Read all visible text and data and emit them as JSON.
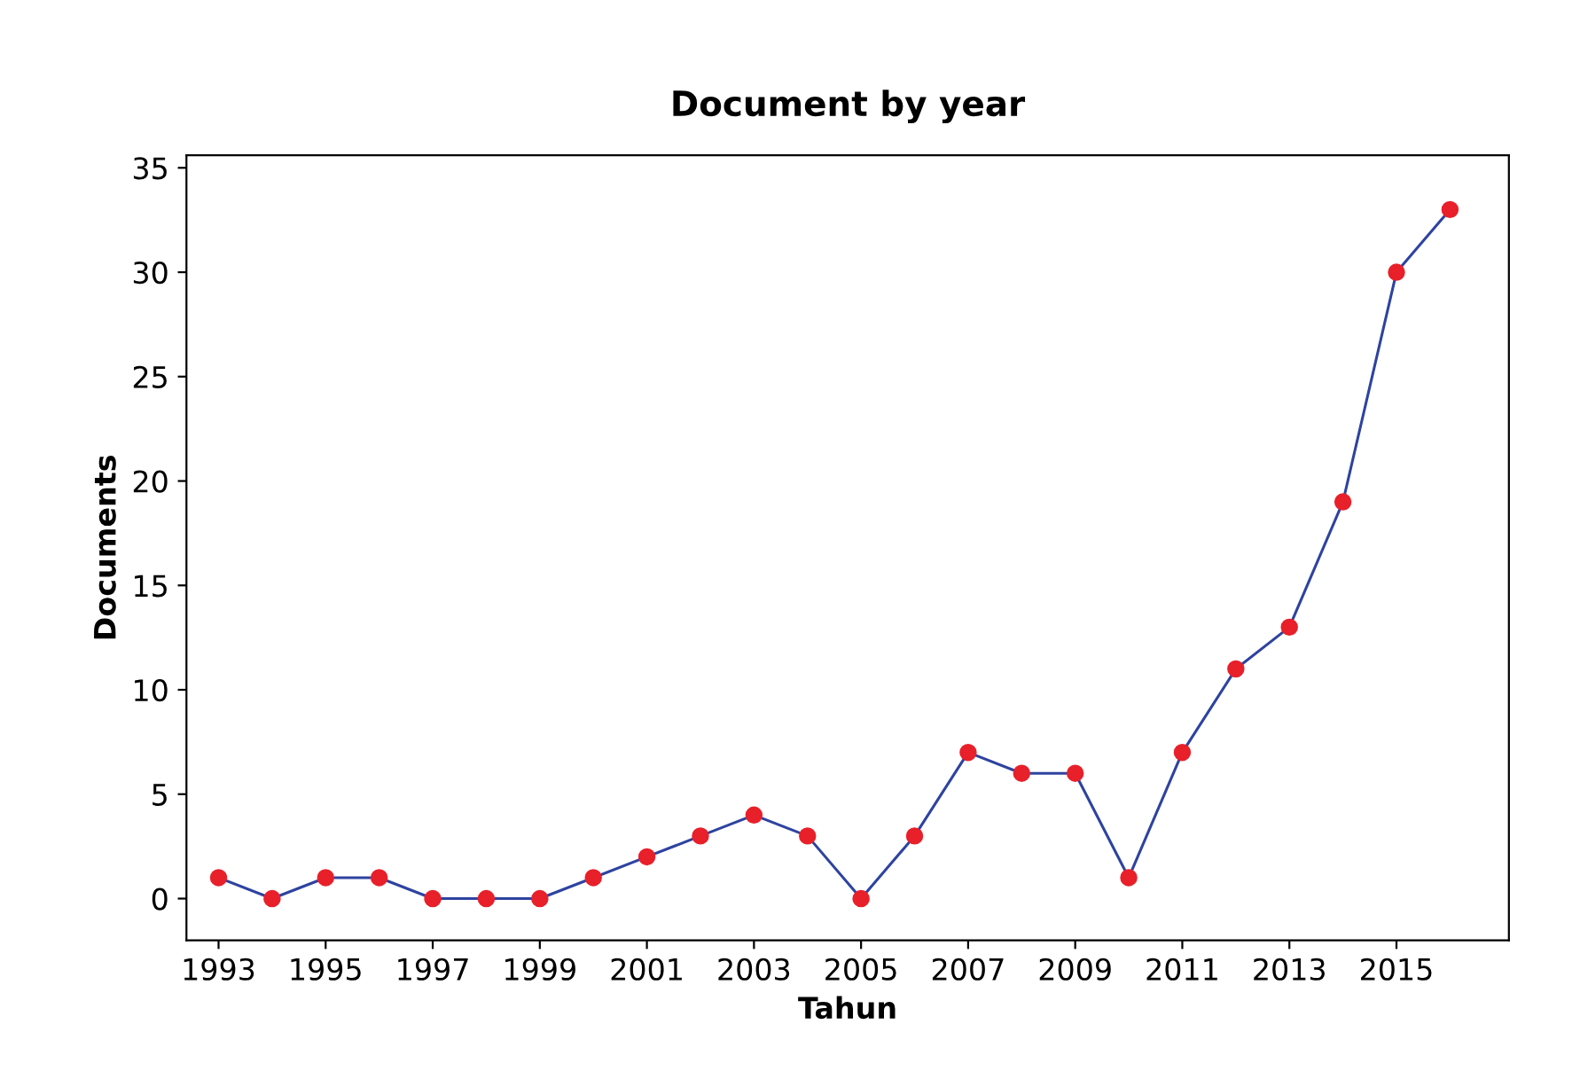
{
  "chart_data": {
    "type": "line",
    "title": "Document by year",
    "xlabel": "Tahun",
    "ylabel": "Documents",
    "x": [
      1993,
      1994,
      1995,
      1996,
      1997,
      1998,
      1999,
      2000,
      2001,
      2002,
      2003,
      2004,
      2005,
      2006,
      2007,
      2008,
      2009,
      2010,
      2011,
      2012,
      2013,
      2014,
      2015,
      2016
    ],
    "series": [
      {
        "color": "#2e43a0",
        "colors": [
          "#e8202a",
          "#e8202a",
          "#e8202a",
          "#e8202a",
          "#e8202a",
          "#e8202a",
          "#e8202a",
          "#e8202a",
          "#e8202a",
          "#e8202a",
          "#e8202a",
          "#e8202a",
          "#e8202a",
          "#e8202a",
          "#e8202a",
          "#e8202a",
          "#e8202a",
          "#e8202a",
          "#e8202a",
          "#e8202a",
          "#e8202a",
          "#e8202a",
          "#e8202a",
          "#e8202a"
        ],
        "values": [
          1,
          0,
          1,
          1,
          0,
          0,
          0,
          1,
          2,
          3,
          4,
          3,
          0,
          3,
          7,
          6,
          6,
          1,
          7,
          11,
          13,
          19,
          30,
          33
        ]
      }
    ],
    "xlim": [
      1992.4,
      2017.1
    ],
    "xticks": [
      1993,
      1995,
      1997,
      1999,
      2001,
      2003,
      2005,
      2007,
      2009,
      2011,
      2013,
      2015
    ],
    "ylim": [
      -2,
      35.6
    ],
    "yticks": [
      0,
      5,
      10,
      15,
      20,
      25,
      30,
      35
    ],
    "marker": "circle",
    "line_style": "solid",
    "grid": false,
    "legend": false
  }
}
